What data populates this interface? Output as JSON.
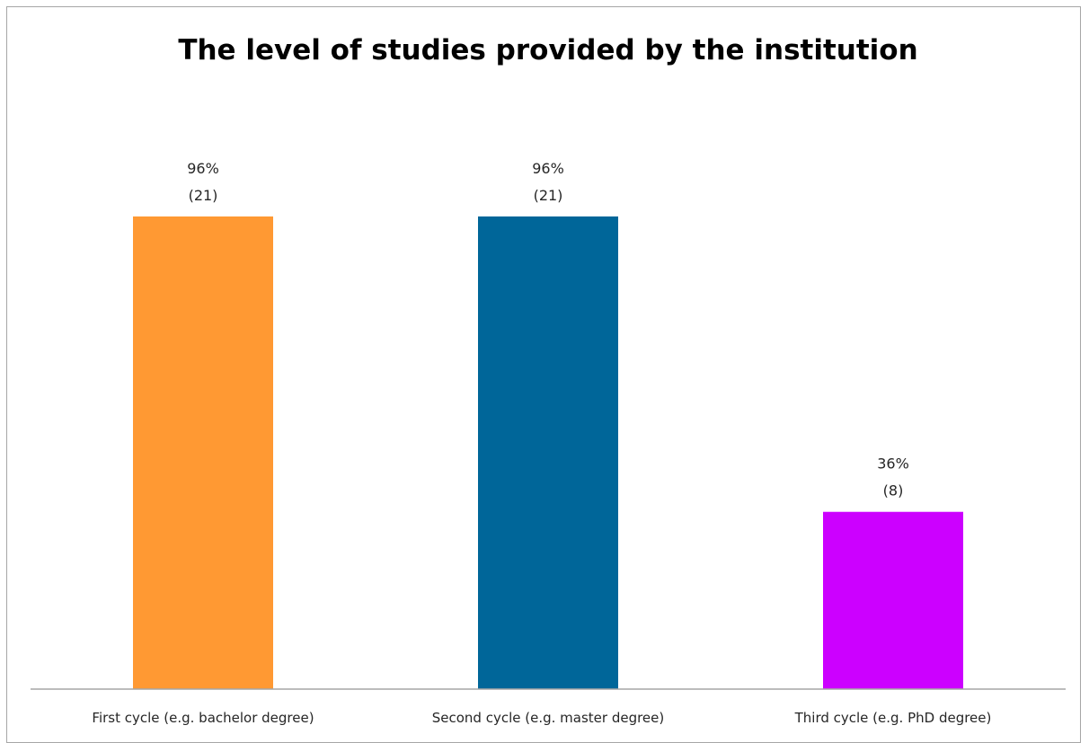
{
  "chart_data": {
    "type": "bar",
    "title": "The level of studies provided by the institution",
    "categories": [
      "First cycle  (e.g. bachelor degree)",
      "Second cycle  (e.g. master degree)",
      "Third cycle  (e.g. PhD degree)"
    ],
    "values": [
      96,
      96,
      36
    ],
    "counts": [
      21,
      21,
      8
    ],
    "percent_labels": [
      "96%",
      "96%",
      "36%"
    ],
    "count_labels": [
      "(21)",
      "(21)",
      "(8)"
    ],
    "colors": [
      "#FF9933",
      "#006699",
      "#CC00FF"
    ],
    "ylim": [
      0,
      100
    ],
    "grid": false,
    "legend": "none"
  }
}
